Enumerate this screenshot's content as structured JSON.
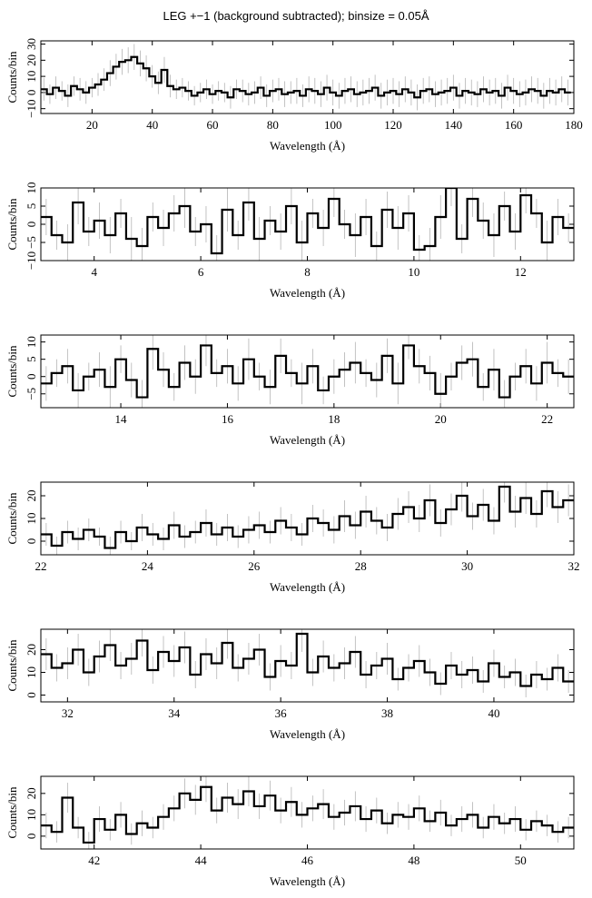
{
  "chart_data": [
    {
      "type": "line",
      "drawstyle": "steps",
      "title": "LEG +−1 (background subtracted); binsize = 0.05Å",
      "xlabel": "Wavelength (Å)",
      "ylabel": "Counts/bin",
      "color": "#000000",
      "error_color": "#b4b4b4",
      "x": [
        3,
        5,
        7,
        9,
        11,
        13,
        15,
        17,
        19,
        21,
        23,
        25,
        27,
        29,
        31,
        33,
        35,
        37,
        39,
        41,
        43,
        45,
        47,
        49,
        51,
        53,
        55,
        57,
        59,
        61,
        63,
        65,
        67,
        69,
        71,
        73,
        75,
        77,
        79,
        81,
        83,
        85,
        87,
        89,
        91,
        93,
        95,
        97,
        99,
        101,
        103,
        105,
        107,
        109,
        111,
        113,
        115,
        117,
        119,
        121,
        123,
        125,
        127,
        129,
        131,
        133,
        135,
        137,
        139,
        141,
        143,
        145,
        147,
        149,
        151,
        153,
        155,
        157,
        159,
        161,
        163,
        165,
        167,
        169,
        171,
        173,
        175,
        177
      ],
      "values": [
        2,
        -1,
        3,
        1,
        -2,
        4,
        2,
        0,
        3,
        5,
        8,
        12,
        16,
        19,
        20,
        22,
        18,
        15,
        10,
        6,
        14,
        4,
        2,
        3,
        1,
        -2,
        0,
        2,
        -1,
        1,
        0,
        -3,
        2,
        1,
        -1,
        0,
        3,
        -2,
        1,
        2,
        -1,
        0,
        1,
        -2,
        2,
        1,
        -1,
        3,
        0,
        -2,
        1,
        2,
        -1,
        0,
        1,
        3,
        -2,
        0,
        1,
        -1,
        2,
        0,
        -3,
        1,
        2,
        -1,
        0,
        1,
        3,
        -2,
        1,
        0,
        -1,
        2,
        0,
        1,
        -2,
        3,
        1,
        -1,
        0,
        2,
        1,
        -2,
        1,
        0,
        2,
        0
      ],
      "errors": [
        7,
        6,
        7,
        6,
        7,
        6,
        7,
        7,
        6,
        7,
        7,
        8,
        8,
        8,
        8,
        8,
        8,
        8,
        7,
        7,
        8,
        7,
        6,
        6,
        6,
        6,
        6,
        6,
        6,
        6,
        6,
        7,
        6,
        7,
        7,
        7,
        7,
        7,
        7,
        7,
        8,
        7,
        8,
        7,
        8,
        8,
        8,
        8,
        8,
        8,
        8,
        8,
        8,
        8,
        8,
        8,
        8,
        8,
        8,
        8,
        8,
        8,
        8,
        8,
        8,
        8,
        8,
        8,
        8,
        8,
        8,
        8,
        8,
        8,
        8,
        8,
        8,
        8,
        8,
        8,
        8,
        8,
        8,
        8,
        8,
        8,
        8,
        8
      ],
      "xlim": [
        3,
        180
      ],
      "ylim": [
        -13,
        32
      ],
      "xticks": [
        20,
        40,
        60,
        80,
        100,
        120,
        140,
        160,
        180
      ],
      "yticks": [
        {
          "value": -10,
          "label": "−10"
        },
        0,
        10,
        20,
        30
      ]
    },
    {
      "type": "line",
      "drawstyle": "steps",
      "xlabel": "Wavelength (Å)",
      "ylabel": "Counts/bin",
      "color": "#000000",
      "error_color": "#b4b4b4",
      "x": [
        3.0,
        3.2,
        3.4,
        3.6,
        3.8,
        4.0,
        4.2,
        4.4,
        4.6,
        4.8,
        5.0,
        5.2,
        5.4,
        5.6,
        5.8,
        6.0,
        6.2,
        6.4,
        6.6,
        6.8,
        7.0,
        7.2,
        7.4,
        7.6,
        7.8,
        8.0,
        8.2,
        8.4,
        8.6,
        8.8,
        9.0,
        9.2,
        9.4,
        9.6,
        9.8,
        10.0,
        10.2,
        10.4,
        10.6,
        10.8,
        11.0,
        11.2,
        11.4,
        11.6,
        11.8,
        12.0,
        12.2,
        12.4,
        12.6,
        12.8
      ],
      "values": [
        2,
        -3,
        -5,
        6,
        -2,
        1,
        -3,
        3,
        -4,
        -6,
        2,
        -1,
        3,
        5,
        -2,
        0,
        -8,
        4,
        -3,
        6,
        -4,
        1,
        -2,
        5,
        -5,
        3,
        -1,
        7,
        0,
        -3,
        2,
        -6,
        4,
        -1,
        3,
        -7,
        -6,
        2,
        10,
        -4,
        7,
        1,
        -3,
        5,
        -2,
        8,
        3,
        -5,
        2,
        -1
      ],
      "errors": [
        5,
        4,
        5,
        6,
        4,
        5,
        5,
        4,
        6,
        5,
        4,
        5,
        5,
        6,
        4,
        5,
        5,
        6,
        4,
        5,
        6,
        4,
        5,
        5,
        6,
        4,
        5,
        5,
        4,
        6,
        5,
        4,
        5,
        6,
        5,
        4,
        5,
        6,
        5,
        4,
        5,
        5,
        6,
        4,
        5,
        5,
        4,
        6,
        5,
        4
      ],
      "xlim": [
        3,
        13
      ],
      "ylim": [
        -10,
        10
      ],
      "xticks": [
        4,
        6,
        8,
        10,
        12
      ],
      "yticks": [
        {
          "value": -10,
          "label": "−10"
        },
        {
          "value": -5,
          "label": "−5"
        },
        0,
        5,
        10
      ]
    },
    {
      "type": "line",
      "drawstyle": "steps",
      "xlabel": "Wavelength (Å)",
      "ylabel": "Counts/bin",
      "color": "#000000",
      "error_color": "#b4b4b4",
      "x": [
        12.5,
        12.7,
        12.9,
        13.1,
        13.3,
        13.5,
        13.7,
        13.9,
        14.1,
        14.3,
        14.5,
        14.7,
        14.9,
        15.1,
        15.3,
        15.5,
        15.7,
        15.9,
        16.1,
        16.3,
        16.5,
        16.7,
        16.9,
        17.1,
        17.3,
        17.5,
        17.7,
        17.9,
        18.1,
        18.3,
        18.5,
        18.7,
        18.9,
        19.1,
        19.3,
        19.5,
        19.7,
        19.9,
        20.1,
        20.3,
        20.5,
        20.7,
        20.9,
        21.1,
        21.3,
        21.5,
        21.7,
        21.9,
        22.1,
        22.3
      ],
      "values": [
        -2,
        1,
        3,
        -4,
        0,
        2,
        -3,
        5,
        -1,
        -6,
        8,
        2,
        -3,
        4,
        0,
        9,
        1,
        3,
        -2,
        5,
        0,
        -3,
        6,
        1,
        -2,
        3,
        -4,
        0,
        2,
        4,
        1,
        -1,
        6,
        -2,
        9,
        3,
        1,
        -5,
        0,
        4,
        5,
        -3,
        2,
        -6,
        0,
        3,
        -2,
        4,
        1,
        0
      ],
      "errors": [
        5,
        4,
        5,
        5,
        4,
        5,
        6,
        4,
        5,
        5,
        6,
        5,
        4,
        5,
        5,
        6,
        4,
        5,
        5,
        6,
        4,
        5,
        5,
        4,
        6,
        5,
        4,
        5,
        5,
        6,
        4,
        5,
        5,
        6,
        4,
        5,
        5,
        6,
        4,
        5,
        5,
        4,
        6,
        5,
        4,
        5,
        5,
        6,
        4,
        5
      ],
      "xlim": [
        12.5,
        22.5
      ],
      "ylim": [
        -9,
        12
      ],
      "xticks": [
        14,
        16,
        18,
        20,
        22
      ],
      "yticks": [
        {
          "value": -5,
          "label": "−5"
        },
        0,
        5,
        10
      ]
    },
    {
      "type": "line",
      "drawstyle": "steps",
      "xlabel": "Wavelength (Å)",
      "ylabel": "Counts/bin",
      "color": "#000000",
      "error_color": "#b4b4b4",
      "x": [
        22.0,
        22.2,
        22.4,
        22.6,
        22.8,
        23.0,
        23.2,
        23.4,
        23.6,
        23.8,
        24.0,
        24.2,
        24.4,
        24.6,
        24.8,
        25.0,
        25.2,
        25.4,
        25.6,
        25.8,
        26.0,
        26.2,
        26.4,
        26.6,
        26.8,
        27.0,
        27.2,
        27.4,
        27.6,
        27.8,
        28.0,
        28.2,
        28.4,
        28.6,
        28.8,
        29.0,
        29.2,
        29.4,
        29.6,
        29.8,
        30.0,
        30.2,
        30.4,
        30.6,
        30.8,
        31.0,
        31.2,
        31.4,
        31.6,
        31.8
      ],
      "values": [
        3,
        -2,
        4,
        1,
        5,
        2,
        -3,
        4,
        0,
        6,
        3,
        1,
        7,
        2,
        4,
        8,
        3,
        6,
        2,
        5,
        7,
        4,
        9,
        6,
        3,
        10,
        8,
        5,
        11,
        7,
        13,
        9,
        6,
        12,
        15,
        10,
        18,
        8,
        14,
        20,
        11,
        16,
        9,
        24,
        13,
        19,
        12,
        22,
        15,
        18
      ],
      "errors": [
        5,
        4,
        5,
        5,
        5,
        4,
        5,
        5,
        4,
        6,
        5,
        5,
        6,
        5,
        5,
        6,
        5,
        6,
        5,
        6,
        6,
        5,
        6,
        6,
        5,
        6,
        6,
        6,
        7,
        6,
        7,
        6,
        6,
        7,
        7,
        6,
        7,
        6,
        7,
        7,
        6,
        7,
        6,
        7,
        7,
        7,
        6,
        7,
        7,
        7
      ],
      "xlim": [
        22,
        32
      ],
      "ylim": [
        -6,
        26
      ],
      "xticks": [
        22,
        24,
        26,
        28,
        30,
        32
      ],
      "yticks": [
        0,
        10,
        20
      ]
    },
    {
      "type": "line",
      "drawstyle": "steps",
      "xlabel": "Wavelength (Å)",
      "ylabel": "Counts/bin",
      "color": "#000000",
      "error_color": "#b4b4b4",
      "x": [
        31.5,
        31.7,
        31.9,
        32.1,
        32.3,
        32.5,
        32.7,
        32.9,
        33.1,
        33.3,
        33.5,
        33.7,
        33.9,
        34.1,
        34.3,
        34.5,
        34.7,
        34.9,
        35.1,
        35.3,
        35.5,
        35.7,
        35.9,
        36.1,
        36.3,
        36.5,
        36.7,
        36.9,
        37.1,
        37.3,
        37.5,
        37.7,
        37.9,
        38.1,
        38.3,
        38.5,
        38.7,
        38.9,
        39.1,
        39.3,
        39.5,
        39.7,
        39.9,
        40.1,
        40.3,
        40.5,
        40.7,
        40.9,
        41.1,
        41.3
      ],
      "values": [
        18,
        12,
        14,
        20,
        10,
        17,
        22,
        13,
        16,
        24,
        11,
        19,
        15,
        21,
        9,
        18,
        14,
        23,
        12,
        16,
        20,
        8,
        15,
        13,
        27,
        10,
        17,
        12,
        14,
        19,
        9,
        13,
        16,
        7,
        12,
        15,
        10,
        5,
        13,
        9,
        11,
        6,
        14,
        8,
        10,
        4,
        9,
        7,
        12,
        6
      ],
      "errors": [
        7,
        6,
        7,
        7,
        6,
        7,
        7,
        6,
        7,
        7,
        6,
        7,
        7,
        7,
        6,
        7,
        7,
        7,
        6,
        7,
        7,
        6,
        7,
        6,
        8,
        6,
        7,
        6,
        7,
        7,
        6,
        6,
        7,
        5,
        6,
        7,
        6,
        5,
        6,
        6,
        6,
        5,
        6,
        5,
        6,
        5,
        6,
        5,
        6,
        5
      ],
      "xlim": [
        31.5,
        41.5
      ],
      "ylim": [
        -3,
        29
      ],
      "xticks": [
        32,
        34,
        36,
        38,
        40
      ],
      "yticks": [
        0,
        10,
        20
      ]
    },
    {
      "type": "line",
      "drawstyle": "steps",
      "xlabel": "Wavelength (Å)",
      "ylabel": "Counts/bin",
      "color": "#000000",
      "error_color": "#b4b4b4",
      "x": [
        41.0,
        41.2,
        41.4,
        41.6,
        41.8,
        42.0,
        42.2,
        42.4,
        42.6,
        42.8,
        43.0,
        43.2,
        43.4,
        43.6,
        43.8,
        44.0,
        44.2,
        44.4,
        44.6,
        44.8,
        45.0,
        45.2,
        45.4,
        45.6,
        45.8,
        46.0,
        46.2,
        46.4,
        46.6,
        46.8,
        47.0,
        47.2,
        47.4,
        47.6,
        47.8,
        48.0,
        48.2,
        48.4,
        48.6,
        48.8,
        49.0,
        49.2,
        49.4,
        49.6,
        49.8,
        50.0,
        50.2,
        50.4,
        50.6,
        50.8
      ],
      "values": [
        5,
        2,
        18,
        4,
        -3,
        8,
        3,
        10,
        1,
        6,
        4,
        9,
        13,
        20,
        17,
        23,
        12,
        18,
        15,
        21,
        14,
        19,
        12,
        16,
        10,
        13,
        15,
        9,
        11,
        14,
        8,
        12,
        6,
        10,
        9,
        13,
        7,
        11,
        5,
        8,
        10,
        4,
        9,
        6,
        8,
        3,
        7,
        5,
        2,
        4
      ],
      "errors": [
        6,
        5,
        7,
        5,
        5,
        6,
        5,
        6,
        5,
        6,
        5,
        6,
        6,
        7,
        7,
        7,
        6,
        7,
        7,
        7,
        6,
        7,
        6,
        7,
        6,
        6,
        7,
        6,
        6,
        7,
        6,
        6,
        5,
        6,
        6,
        6,
        5,
        6,
        5,
        6,
        6,
        5,
        6,
        5,
        6,
        5,
        5,
        5,
        5,
        5
      ],
      "xlim": [
        41,
        51
      ],
      "ylim": [
        -6,
        28
      ],
      "xticks": [
        42,
        44,
        46,
        48,
        50
      ],
      "yticks": [
        0,
        10,
        20
      ]
    }
  ]
}
